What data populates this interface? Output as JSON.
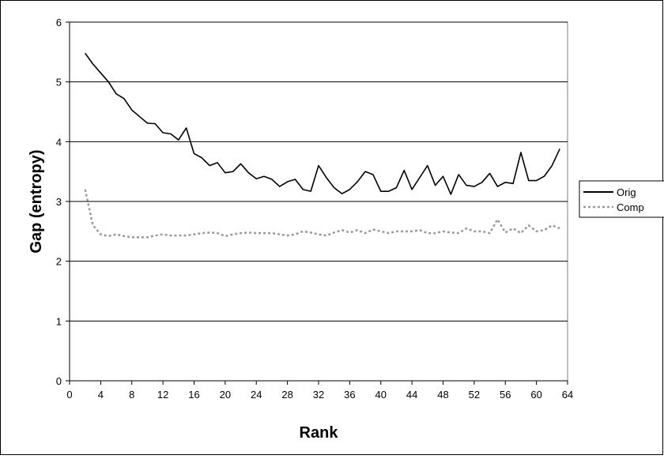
{
  "chart_data": {
    "type": "line",
    "xlabel": "Rank",
    "ylabel": "Gap (entropy)",
    "xlim": [
      0,
      64
    ],
    "ylim": [
      0,
      6
    ],
    "xticks": [
      0,
      4,
      8,
      12,
      16,
      20,
      24,
      28,
      32,
      36,
      40,
      44,
      48,
      52,
      56,
      60,
      64
    ],
    "yticks": [
      0,
      1,
      2,
      3,
      4,
      5,
      6
    ],
    "grid": "horizontal",
    "legend_position": "right",
    "x": [
      2,
      3,
      4,
      5,
      6,
      7,
      8,
      9,
      10,
      11,
      12,
      13,
      14,
      15,
      16,
      17,
      18,
      19,
      20,
      21,
      22,
      23,
      24,
      25,
      26,
      27,
      28,
      29,
      30,
      31,
      32,
      33,
      34,
      35,
      36,
      37,
      38,
      39,
      40,
      41,
      42,
      43,
      44,
      45,
      46,
      47,
      48,
      49,
      50,
      51,
      52,
      53,
      54,
      55,
      56,
      57,
      58,
      59,
      60,
      61,
      62,
      63
    ],
    "series": [
      {
        "name": "Orig",
        "style": "solid",
        "color": "#000000",
        "values": [
          5.48,
          5.3,
          5.15,
          5.0,
          4.8,
          4.72,
          4.53,
          4.42,
          4.31,
          4.3,
          4.15,
          4.13,
          4.03,
          4.23,
          3.8,
          3.73,
          3.6,
          3.65,
          3.48,
          3.5,
          3.63,
          3.48,
          3.38,
          3.42,
          3.37,
          3.25,
          3.33,
          3.37,
          3.2,
          3.17,
          3.6,
          3.4,
          3.23,
          3.13,
          3.2,
          3.33,
          3.5,
          3.45,
          3.17,
          3.17,
          3.23,
          3.52,
          3.2,
          3.4,
          3.6,
          3.27,
          3.42,
          3.12,
          3.45,
          3.27,
          3.25,
          3.32,
          3.47,
          3.25,
          3.32,
          3.3,
          3.82,
          3.35,
          3.35,
          3.42,
          3.6,
          3.88
        ]
      },
      {
        "name": "Comp",
        "style": "dotted",
        "color": "#9a9a9a",
        "values": [
          3.2,
          2.6,
          2.45,
          2.42,
          2.45,
          2.42,
          2.4,
          2.4,
          2.4,
          2.43,
          2.45,
          2.43,
          2.43,
          2.43,
          2.45,
          2.47,
          2.48,
          2.47,
          2.42,
          2.45,
          2.47,
          2.48,
          2.47,
          2.47,
          2.47,
          2.45,
          2.43,
          2.45,
          2.5,
          2.48,
          2.45,
          2.43,
          2.48,
          2.52,
          2.48,
          2.52,
          2.47,
          2.53,
          2.5,
          2.47,
          2.5,
          2.5,
          2.5,
          2.52,
          2.47,
          2.47,
          2.5,
          2.48,
          2.47,
          2.55,
          2.5,
          2.5,
          2.47,
          2.7,
          2.48,
          2.55,
          2.47,
          2.6,
          2.5,
          2.52,
          2.6,
          2.55
        ]
      }
    ]
  }
}
